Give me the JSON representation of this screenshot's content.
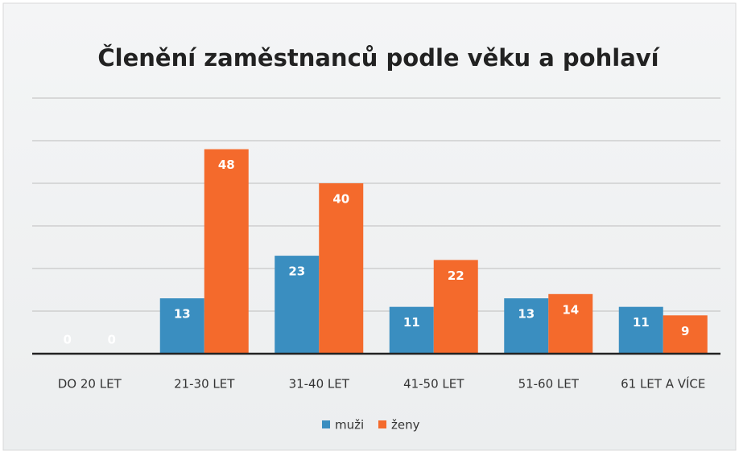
{
  "chart_data": {
    "type": "bar",
    "title": "Členění zaměstnanců podle věku a pohlaví",
    "categories": [
      "DO 20 LET",
      "21-30 LET",
      "31-40 LET",
      "41-50 LET",
      "51-60 LET",
      "61 LET A VÍCE"
    ],
    "series": [
      {
        "name": "muži",
        "color": "#3a8ec0",
        "values": [
          0,
          13,
          23,
          11,
          13,
          11
        ]
      },
      {
        "name": "ženy",
        "color": "#f46a2c",
        "values": [
          0,
          48,
          40,
          22,
          14,
          9
        ]
      }
    ],
    "ylim": [
      0,
      60
    ],
    "yticks": [
      0,
      10,
      20,
      30,
      40,
      50,
      60
    ],
    "grid": true,
    "legend": "bottom"
  }
}
